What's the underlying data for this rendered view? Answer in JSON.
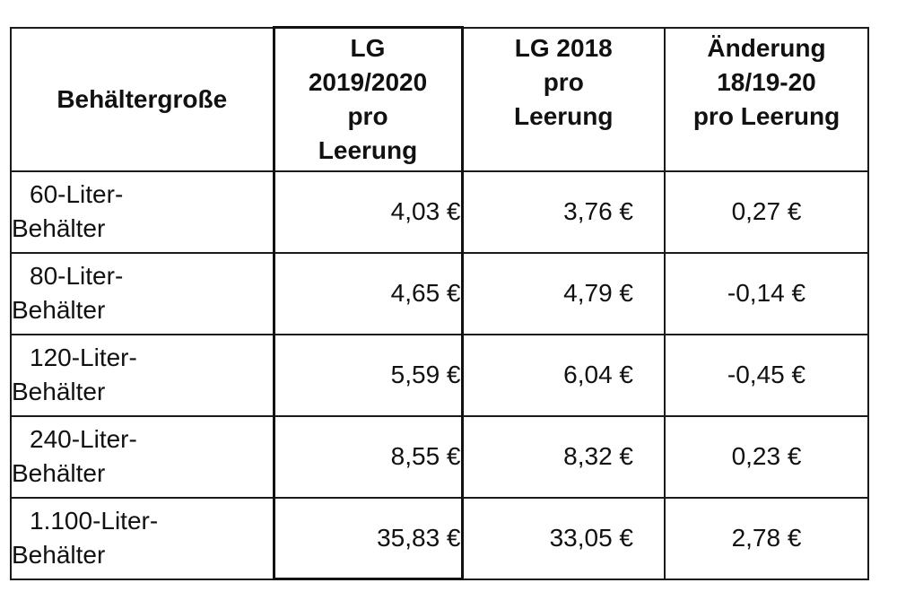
{
  "table": {
    "headers": [
      "Behältergroße",
      "LG 2019/2020 pro Leerung",
      "LG 2018 pro Leerung",
      "Änderung 18/19-20 pro Leerung"
    ],
    "header_lines": {
      "col2": [
        "LG",
        "2019/2020",
        "pro",
        "Leerung"
      ],
      "col3": [
        "LG 2018",
        "pro",
        "Leerung"
      ],
      "col4": [
        "Änderung",
        "18/19-20",
        "pro Leerung"
      ]
    },
    "rows": [
      {
        "size_line1": "60-Liter-",
        "size_line2": "Behälter",
        "lg_2019_2020": "4,03 €",
        "lg_2018": "3,76 €",
        "change": "0,27 €"
      },
      {
        "size_line1": "80-Liter-",
        "size_line2": "Behälter",
        "lg_2019_2020": "4,65 €",
        "lg_2018": "4,79 €",
        "change": "-0,14 €"
      },
      {
        "size_line1": "120-Liter-",
        "size_line2": "Behälter",
        "lg_2019_2020": "5,59 €",
        "lg_2018": "6,04 €",
        "change": "-0,45 €"
      },
      {
        "size_line1": "240-Liter-",
        "size_line2": "Behälter",
        "lg_2019_2020": "8,55 €",
        "lg_2018": "8,32 €",
        "change": "0,23 €"
      },
      {
        "size_line1": "1.100-Liter-",
        "size_line2": "Behälter",
        "lg_2019_2020": "35,83 €",
        "lg_2018": "33,05 €",
        "change": "2,78 €"
      }
    ]
  }
}
